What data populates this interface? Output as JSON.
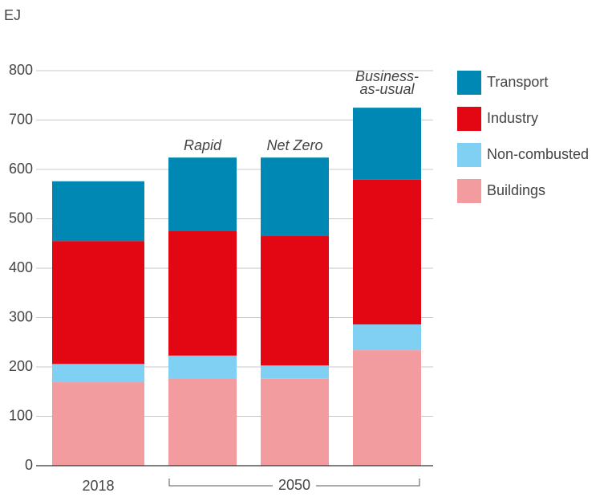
{
  "chart_data": {
    "type": "stacked_bar",
    "y_label": "EJ",
    "categories": [
      "2018",
      null,
      null,
      null
    ],
    "group_label": "2050",
    "scenario_labels": [
      null,
      "Rapid",
      "Net Zero",
      "Business-as-usual"
    ],
    "series": [
      {
        "name": "Buildings",
        "color": "#f29ca0",
        "values": [
          169,
          177,
          176,
          234
        ]
      },
      {
        "name": "Non-combusted",
        "color": "#80d0f4",
        "values": [
          37,
          46,
          27,
          52
        ]
      },
      {
        "name": "Industry",
        "color": "#e30613",
        "values": [
          249,
          253,
          262,
          293
        ]
      },
      {
        "name": "Transport",
        "color": "#0088b5",
        "values": [
          121,
          148,
          159,
          146
        ]
      }
    ],
    "ylim": [
      0,
      800
    ],
    "yticks": [
      0,
      100,
      200,
      300,
      400,
      500,
      600,
      700,
      800
    ],
    "grid": true
  }
}
